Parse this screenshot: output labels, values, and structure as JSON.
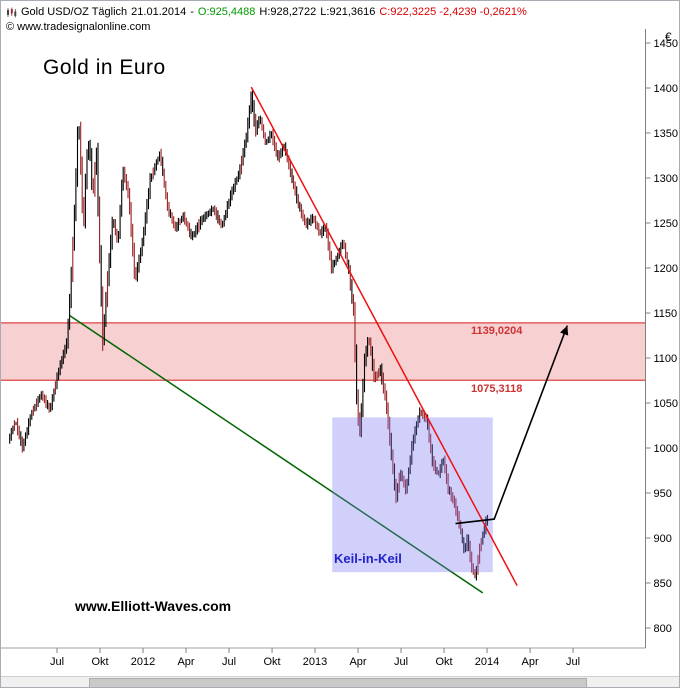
{
  "header": {
    "line1": {
      "instrument": "Gold USD/OZ Täglich",
      "date": "21.01.2014",
      "dash": "-",
      "open": "O:925,4488",
      "high": "H:928,2722",
      "low": "L:921,3616",
      "close": "C:922,3225 -2,4239 -0,2621%"
    },
    "line2": "© www.tradesignalonline.com",
    "colors": {
      "open": "#009900",
      "close": "#dd0000",
      "text": "#000000"
    }
  },
  "chart_title": "Gold in Euro",
  "watermark": "www.Elliott-Waves.com",
  "annotations": {
    "keil_label": "Keil-in-Keil",
    "keil_color": "#2222cc",
    "level_upper_label": "1139,0204",
    "level_lower_label": "1075,3118",
    "level_color": "#cc3333"
  },
  "chart_data": {
    "type": "candlestick",
    "title": "Gold in Euro",
    "instrument": "Gold USD/OZ",
    "timeframe": "Täglich",
    "last_quote": {
      "date": "21.01.2014",
      "open": 925.4488,
      "high": 928.2722,
      "low": 921.3616,
      "close": 922.3225,
      "change": -2.4239,
      "change_pct": -0.2621
    },
    "y_axis": {
      "currency": "€",
      "min": 800,
      "max": 1450,
      "step": 50,
      "ticks": [
        1450,
        1400,
        1350,
        1300,
        1250,
        1200,
        1150,
        1100,
        1050,
        1000,
        950,
        900,
        850,
        800
      ]
    },
    "x_axis": {
      "labels": [
        "Jul",
        "Okt",
        "2012",
        "Apr",
        "Jul",
        "Okt",
        "2013",
        "Apr",
        "Jul",
        "Okt",
        "2014",
        "Apr",
        "Jul"
      ],
      "months": [
        1,
        4,
        7,
        10,
        13,
        16,
        19,
        22,
        25,
        28,
        31,
        34,
        37
      ],
      "epoch": "months since Jun 2011"
    },
    "time_domain": {
      "start_month": -2.35,
      "end_month": 41.6
    },
    "price_path": [
      [
        -2.3,
        1008
      ],
      [
        -1.8,
        1030
      ],
      [
        -1.3,
        1000
      ],
      [
        -0.7,
        1038
      ],
      [
        0.0,
        1060
      ],
      [
        0.6,
        1042
      ],
      [
        1.2,
        1085
      ],
      [
        1.8,
        1118
      ],
      [
        2.1,
        1192
      ],
      [
        2.4,
        1288
      ],
      [
        2.6,
        1372
      ],
      [
        2.8,
        1298
      ],
      [
        2.95,
        1242
      ],
      [
        3.15,
        1318
      ],
      [
        3.35,
        1342
      ],
      [
        3.6,
        1278
      ],
      [
        3.85,
        1332
      ],
      [
        4.05,
        1228
      ],
      [
        4.3,
        1120
      ],
      [
        4.65,
        1192
      ],
      [
        5.0,
        1256
      ],
      [
        5.35,
        1226
      ],
      [
        5.7,
        1310
      ],
      [
        6.1,
        1280
      ],
      [
        6.55,
        1186
      ],
      [
        7.05,
        1228
      ],
      [
        7.6,
        1298
      ],
      [
        8.3,
        1328
      ],
      [
        8.8,
        1268
      ],
      [
        9.35,
        1244
      ],
      [
        9.9,
        1258
      ],
      [
        10.5,
        1234
      ],
      [
        11.2,
        1254
      ],
      [
        12.0,
        1266
      ],
      [
        12.6,
        1246
      ],
      [
        13.2,
        1280
      ],
      [
        13.85,
        1308
      ],
      [
        14.35,
        1350
      ],
      [
        14.65,
        1393
      ],
      [
        14.95,
        1352
      ],
      [
        15.25,
        1368
      ],
      [
        15.65,
        1338
      ],
      [
        16.05,
        1350
      ],
      [
        16.5,
        1322
      ],
      [
        16.95,
        1336
      ],
      [
        17.45,
        1302
      ],
      [
        17.95,
        1270
      ],
      [
        18.45,
        1248
      ],
      [
        18.95,
        1256
      ],
      [
        19.45,
        1238
      ],
      [
        19.85,
        1246
      ],
      [
        20.25,
        1200
      ],
      [
        20.65,
        1212
      ],
      [
        21.05,
        1230
      ],
      [
        21.45,
        1198
      ],
      [
        21.8,
        1150
      ],
      [
        22.05,
        1040
      ],
      [
        22.25,
        1018
      ],
      [
        22.55,
        1096
      ],
      [
        22.85,
        1124
      ],
      [
        23.25,
        1076
      ],
      [
        23.65,
        1088
      ],
      [
        24.05,
        1052
      ],
      [
        24.45,
        990
      ],
      [
        24.75,
        944
      ],
      [
        25.05,
        974
      ],
      [
        25.45,
        952
      ],
      [
        25.9,
        1006
      ],
      [
        26.4,
        1040
      ],
      [
        26.9,
        1032
      ],
      [
        27.3,
        984
      ],
      [
        27.7,
        970
      ],
      [
        28.05,
        988
      ],
      [
        28.4,
        954
      ],
      [
        28.8,
        940
      ],
      [
        29.2,
        914
      ],
      [
        29.5,
        886
      ],
      [
        29.75,
        900
      ],
      [
        30.0,
        870
      ],
      [
        30.3,
        856
      ],
      [
        30.6,
        890
      ],
      [
        30.85,
        906
      ],
      [
        31.1,
        922
      ]
    ],
    "zone": {
      "from": 1075.3118,
      "to": 1139.0204,
      "fill": "#ee9999",
      "opacity": 0.45,
      "border": "#dd4444"
    },
    "levels": [
      {
        "value": 1139.0204,
        "label": "1139,0204"
      },
      {
        "value": 1075.3118,
        "label": "1075,3118"
      }
    ],
    "trendlines": [
      {
        "name": "green-support-trendline",
        "color": "#006600",
        "width": 1.5,
        "from": [
          1.9,
          1147
        ],
        "to": [
          30.7,
          839
        ],
        "layer": "back"
      },
      {
        "name": "red-resistance-trendline",
        "color": "#ee1111",
        "width": 1.5,
        "from": [
          14.55,
          1401
        ],
        "to": [
          33.1,
          847
        ],
        "layer": "front"
      }
    ],
    "wedge_box": {
      "m1": 20.2,
      "m2": 31.4,
      "p1": 862,
      "p2": 1034,
      "fill": "#7878f0",
      "opacity": 0.35
    },
    "arrow": {
      "color": "#000000",
      "width": 1.6,
      "points_mp": [
        [
          28.8,
          916
        ],
        [
          31.5,
          921
        ],
        [
          36.6,
          1136
        ]
      ]
    },
    "candle_colors": {
      "up": "#000000",
      "down": "#992222"
    },
    "axis_color": "#808080",
    "tick_text_color": "#000000"
  }
}
